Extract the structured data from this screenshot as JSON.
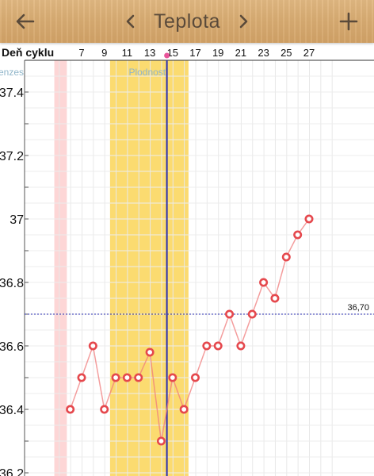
{
  "header": {
    "title": "Teplota",
    "back_icon": "arrow-left-icon",
    "prev_icon": "chevron-left-icon",
    "next_icon": "chevron-right-icon",
    "add_icon": "plus-icon"
  },
  "colors": {
    "wood": "#d9ac72",
    "menses": "#fdd6d6",
    "fertile": "#fbdb70",
    "today_line": "#2b2fb0",
    "series": "#f07e7e",
    "reference_line": "#2b2fb0",
    "today_dot": "#e8559a"
  },
  "chart_data": {
    "type": "line",
    "x_axis_label": "Deň cyklu",
    "x_ticks": [
      7,
      9,
      11,
      13,
      15,
      17,
      19,
      21,
      23,
      25,
      27
    ],
    "y_ticks": [
      "37.4",
      "37.2",
      "37",
      "36.8",
      "36.6",
      "36.4",
      "36.2"
    ],
    "y_values_for_ticks": [
      37.4,
      37.2,
      37.0,
      36.8,
      36.6,
      36.4,
      36.2
    ],
    "ylim": [
      36.2,
      37.45
    ],
    "xlim": [
      4.6,
      29.5
    ],
    "series": [
      {
        "x": [
          6,
          7,
          8,
          9,
          10,
          11,
          12,
          13,
          14,
          15,
          16,
          17,
          18,
          19,
          20,
          21,
          22,
          23,
          24,
          25,
          26
        ],
        "y": [
          36.4,
          36.5,
          36.6,
          36.4,
          36.5,
          36.5,
          36.5,
          36.58,
          36.3,
          36.5,
          36.4,
          36.5,
          36.6,
          36.6,
          36.7,
          36.6,
          36.7,
          36.8,
          36.75,
          36.88,
          36.95
        ]
      }
    ],
    "extra_point": {
      "x": 27,
      "y": 37.0
    },
    "bands": [
      {
        "label": "Menzes",
        "x_start": 4.6,
        "x_end": 5.7,
        "color": "#fdd6d6"
      },
      {
        "label": "Plodnosť",
        "x_start": 9.5,
        "x_end": 16.4,
        "color": "#fbdb70"
      }
    ],
    "today": 14.5,
    "reference": {
      "value": 36.7,
      "label": "36,70"
    }
  }
}
